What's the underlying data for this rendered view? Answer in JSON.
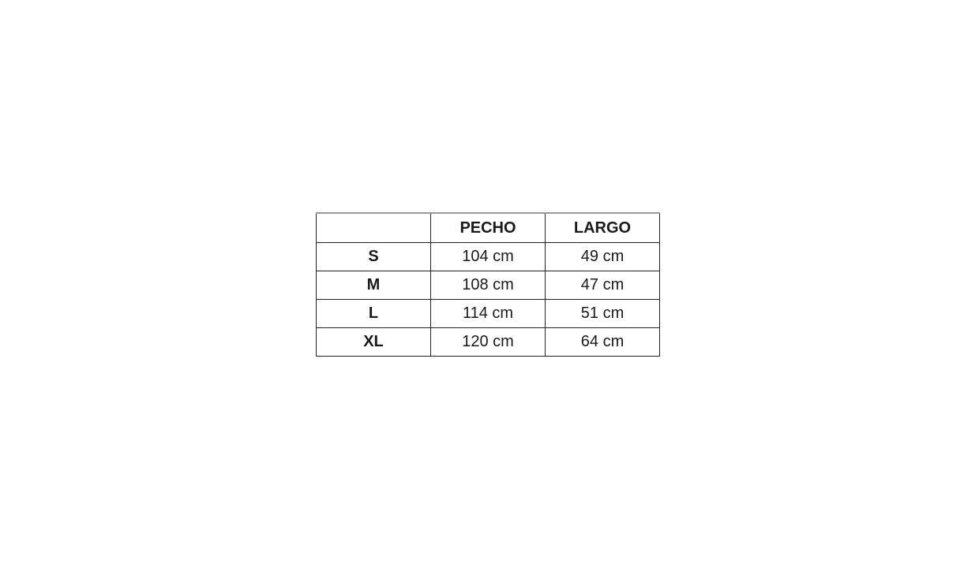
{
  "table": {
    "headers": [
      "",
      "PECHO",
      "LARGO"
    ],
    "rows": [
      {
        "size": "S",
        "pecho": "104 cm",
        "largo": "49 cm"
      },
      {
        "size": "M",
        "pecho": "108 cm",
        "largo": "47 cm"
      },
      {
        "size": "L",
        "pecho": "114 cm",
        "largo": "51 cm"
      },
      {
        "size": "XL",
        "pecho": "120 cm",
        "largo": "64 cm"
      }
    ]
  }
}
